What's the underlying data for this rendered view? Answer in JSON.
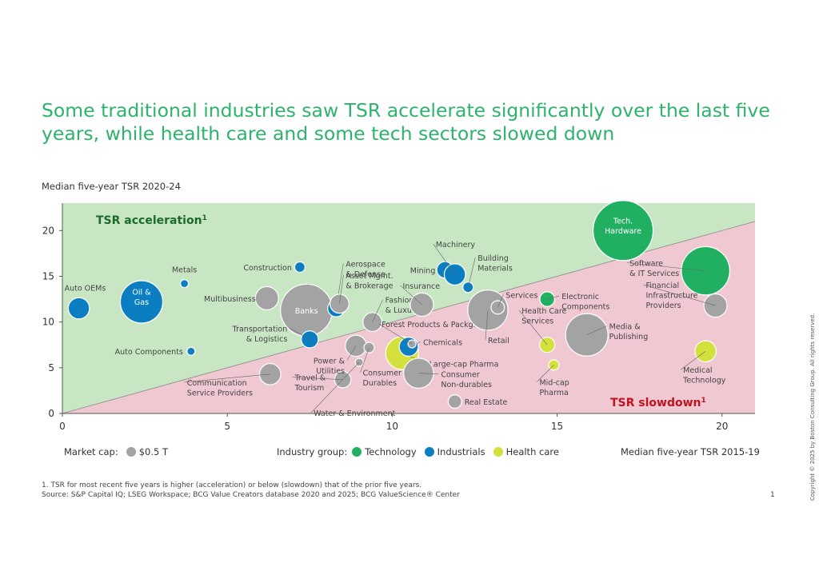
{
  "title": "Some traditional industries saw TSR accelerate significantly over the last five years, while health care and some tech sectors slowed down",
  "y_axis_title": "Median five-year TSR 2020-24",
  "x_axis_title": "Median five-year TSR 2015-19",
  "legend": {
    "market_cap_label": "Market cap:",
    "market_cap_value": "$0.5 T",
    "industry_group_label": "Industry group:",
    "groups": [
      {
        "label": "Technology",
        "color": "#21b061"
      },
      {
        "label": "Industrials",
        "color": "#0b7ec1"
      },
      {
        "label": "Health care",
        "color": "#d4e03b"
      }
    ]
  },
  "footnote": "1. TSR for most recent five years is higher (acceleration) or below (slowdown) that of the prior five years.",
  "source": "Source: S&P Capital IQ; LSEG Workspace; BCG Value Creators database 2020 and 2025; BCG ValueScience® Center",
  "page_number": "1",
  "copyright": "Copyright © 2025 by Boston Consulting Group. All rights reserved.",
  "chart_data": {
    "type": "scatter",
    "xlabel": "Median five-year TSR 2015-19",
    "ylabel": "Median five-year TSR 2020-24",
    "xlim": [
      0,
      21
    ],
    "ylim": [
      0,
      23
    ],
    "xticks": [
      0,
      5,
      10,
      15,
      20
    ],
    "yticks": [
      0,
      5,
      10,
      15,
      20
    ],
    "region_labels": {
      "acceleration": "TSR acceleration",
      "slowdown": "TSR slowdown",
      "superscript": "1"
    },
    "region_colors": {
      "acceleration": "#c8e6c4",
      "slowdown": "#f0c8d2"
    },
    "group_colors": {
      "gray": "#a3a3a3",
      "technology": "#21b061",
      "industrials": "#0b7ec1",
      "healthcare": "#d4e03b"
    },
    "points": [
      {
        "label": "Auto OEMs",
        "x": 0.5,
        "y": 11.5,
        "size": 0.25,
        "group": "industrials"
      },
      {
        "label": "Oil & Gas",
        "x": 2.4,
        "y": 12.2,
        "size": 1.0,
        "group": "industrials"
      },
      {
        "label": "Metals",
        "x": 3.7,
        "y": 14.2,
        "size": 0.03,
        "group": "industrials"
      },
      {
        "label": "Auto Components",
        "x": 3.9,
        "y": 6.8,
        "size": 0.03,
        "group": "industrials"
      },
      {
        "label": "Communication Service Providers",
        "x": 6.3,
        "y": 4.3,
        "size": 0.25,
        "group": "gray"
      },
      {
        "label": "Multibusiness",
        "x": 6.2,
        "y": 12.6,
        "size": 0.3,
        "group": "gray"
      },
      {
        "label": "Construction",
        "x": 7.2,
        "y": 16.0,
        "size": 0.06,
        "group": "industrials"
      },
      {
        "label": "Banks",
        "x": 7.4,
        "y": 11.3,
        "size": 1.5,
        "group": "gray"
      },
      {
        "label": "Transportation & Logistics",
        "x": 7.5,
        "y": 8.1,
        "size": 0.16,
        "group": "industrials"
      },
      {
        "label": "Aerospace & Defense",
        "x": 8.3,
        "y": 11.5,
        "size": 0.16,
        "group": "industrials"
      },
      {
        "label": "Asset Mgmt. & Brokerage",
        "x": 8.4,
        "y": 12.0,
        "size": 0.2,
        "group": "gray"
      },
      {
        "label": "Travel & Tourism",
        "x": 8.5,
        "y": 3.7,
        "size": 0.15,
        "group": "gray"
      },
      {
        "label": "Power & Utilities",
        "x": 8.9,
        "y": 7.4,
        "size": 0.25,
        "group": "gray"
      },
      {
        "label": "Water & Environment",
        "x": 9.0,
        "y": 5.6,
        "size": 0.03,
        "group": "gray"
      },
      {
        "label": "Consumer Durables",
        "x": 9.3,
        "y": 7.2,
        "size": 0.06,
        "group": "gray"
      },
      {
        "label": "Fashion & Luxury",
        "x": 9.4,
        "y": 10.0,
        "size": 0.2,
        "group": "gray"
      },
      {
        "label": "Large-cap Pharma",
        "x": 10.3,
        "y": 6.6,
        "size": 0.6,
        "group": "healthcare"
      },
      {
        "label": "Chemicals",
        "x": 10.5,
        "y": 7.3,
        "size": 0.2,
        "group": "industrials"
      },
      {
        "label": "Forest Products & Packg.",
        "x": 10.6,
        "y": 7.6,
        "size": 0.03,
        "group": "gray"
      },
      {
        "label": "Consumer Non-durables",
        "x": 10.8,
        "y": 4.4,
        "size": 0.5,
        "group": "gray"
      },
      {
        "label": "Insurance",
        "x": 10.9,
        "y": 11.9,
        "size": 0.3,
        "group": "gray"
      },
      {
        "label": "Mining",
        "x": 11.6,
        "y": 15.7,
        "size": 0.15,
        "group": "industrials"
      },
      {
        "label": "Machinery",
        "x": 11.9,
        "y": 15.2,
        "size": 0.25,
        "group": "industrials"
      },
      {
        "label": "Real Estate",
        "x": 11.9,
        "y": 1.3,
        "size": 0.1,
        "group": "gray"
      },
      {
        "label": "Building Materials",
        "x": 12.3,
        "y": 13.8,
        "size": 0.06,
        "group": "industrials"
      },
      {
        "label": "Retail",
        "x": 12.9,
        "y": 11.3,
        "size": 0.9,
        "group": "gray"
      },
      {
        "label": "Services",
        "x": 13.2,
        "y": 11.6,
        "size": 0.1,
        "group": "gray"
      },
      {
        "label": "Electronic Components",
        "x": 14.7,
        "y": 12.5,
        "size": 0.12,
        "group": "technology"
      },
      {
        "label": "Health Care Services",
        "x": 14.7,
        "y": 7.5,
        "size": 0.13,
        "group": "healthcare"
      },
      {
        "label": "Mid-cap Pharma",
        "x": 14.9,
        "y": 5.3,
        "size": 0.06,
        "group": "healthcare"
      },
      {
        "label": "Media & Publishing",
        "x": 15.9,
        "y": 8.6,
        "size": 1.0,
        "group": "gray"
      },
      {
        "label": "Tech. Hardware",
        "x": 17.0,
        "y": 20.0,
        "size": 2.0,
        "group": "technology"
      },
      {
        "label": "Software & IT Services",
        "x": 19.5,
        "y": 15.6,
        "size": 1.3,
        "group": "technology"
      },
      {
        "label": "Financial Infrastructure Providers",
        "x": 19.8,
        "y": 11.8,
        "size": 0.3,
        "group": "gray"
      },
      {
        "label": "Medical Technology",
        "x": 19.5,
        "y": 6.8,
        "size": 0.25,
        "group": "healthcare"
      }
    ]
  }
}
